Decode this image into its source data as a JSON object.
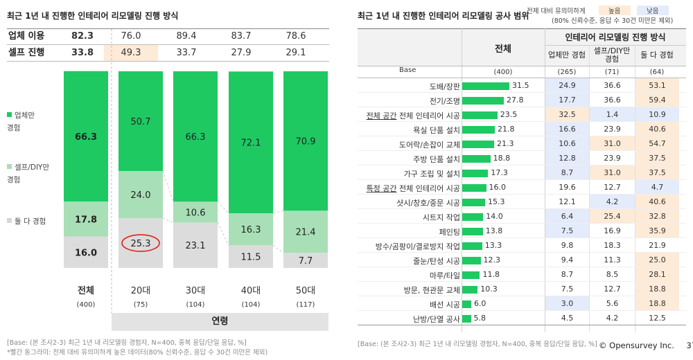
{
  "left": {
    "title": "최근 1년 내 진행한 인테리어 리모델링 진행 방식",
    "summary_rows": [
      {
        "label": "업체 이용",
        "values": [
          "82.3",
          "76.0",
          "89.4",
          "83.7",
          "78.6"
        ]
      },
      {
        "label": "셀프 진행",
        "values": [
          "33.8",
          "49.3",
          "33.7",
          "27.9",
          "29.1"
        ]
      }
    ],
    "legend": {
      "company_1": "업체만",
      "company_2": "경험",
      "self_1": "셀프/DIY만",
      "self_2": "경험",
      "both": "둘 다 경험"
    },
    "axis_group_label": "연령",
    "source_1": "[Base: (본 조사2-3) 최근 1년 내 리모델링 경험자, N=400, 중복 응답/단일 응답, %]",
    "source_2": "*빨간 동그라미: 전체 대비 유의미하게 높은 데이터(80% 신뢰수준, 응답 수 30건 미만은 제외)"
  },
  "chart_data": {
    "type": "bar",
    "stacked": true,
    "title": "최근 1년 내 진행한 인테리어 리모델링 진행 방식",
    "categories": [
      "전체",
      "20대",
      "30대",
      "40대",
      "50대"
    ],
    "bases": [
      "(400)",
      "(75)",
      "(104)",
      "(104)",
      "(117)"
    ],
    "series": [
      {
        "name": "둘 다 경험",
        "color": "#dcdcdc",
        "values": [
          16.0,
          25.3,
          23.1,
          11.5,
          7.7
        ]
      },
      {
        "name": "셀프/DIY만 경험",
        "color": "#a9dfb6",
        "values": [
          17.8,
          24.0,
          10.6,
          16.3,
          21.4
        ]
      },
      {
        "name": "업체만 경험",
        "color": "#1ec962",
        "values": [
          66.3,
          50.7,
          66.3,
          72.1,
          70.9
        ]
      }
    ],
    "ylim": [
      0,
      100
    ],
    "highlight": {
      "category": "20대",
      "series": "둘 다 경험"
    }
  },
  "right": {
    "title": "최근 1년 내 진행한 인테리어 리모델링 공사 범위",
    "legend_note_1": "전체 대비 유의미하게",
    "legend_high": "높음",
    "legend_low": "낮음",
    "legend_note_2": "(80% 신뢰수준, 응답 수 30건 미만은 제외)",
    "header_total": "전체",
    "header_group": "인테리어 리모델링 진행 방식",
    "header_cols": [
      [
        "업체만 경험"
      ],
      [
        "셀프/DIY만",
        "경험"
      ],
      [
        "둘 다 경험"
      ]
    ],
    "base_label": "Base",
    "bases": [
      "(400)",
      "(265)",
      "(71)",
      "(64)"
    ],
    "rows": [
      {
        "prefix": "",
        "label": "도배/장판",
        "total": "31.5",
        "cols": [
          "24.9",
          "36.6",
          "53.1"
        ],
        "marks": [
          "low",
          "",
          "high"
        ]
      },
      {
        "prefix": "",
        "label": "전기/조명",
        "total": "27.8",
        "cols": [
          "17.7",
          "36.6",
          "59.4"
        ],
        "marks": [
          "low",
          "",
          "high"
        ]
      },
      {
        "prefix": "전체 공간",
        "label": " 전체 인테리어 시공",
        "total": "23.5",
        "cols": [
          "32.5",
          "1.4",
          "10.9"
        ],
        "marks": [
          "high",
          "low",
          "low"
        ]
      },
      {
        "prefix": "",
        "label": "욕실 단품 설치",
        "total": "21.8",
        "cols": [
          "16.6",
          "23.9",
          "40.6"
        ],
        "marks": [
          "low",
          "",
          "high"
        ]
      },
      {
        "prefix": "",
        "label": "도어락/손잡이 교체",
        "total": "21.3",
        "cols": [
          "10.6",
          "31.0",
          "54.7"
        ],
        "marks": [
          "low",
          "high",
          "high"
        ]
      },
      {
        "prefix": "",
        "label": "주방 단품 설치",
        "total": "18.8",
        "cols": [
          "12.8",
          "23.9",
          "37.5"
        ],
        "marks": [
          "low",
          "",
          "high"
        ]
      },
      {
        "prefix": "",
        "label": "가구 조립 및 설치",
        "total": "17.3",
        "cols": [
          "8.7",
          "31.0",
          "37.5"
        ],
        "marks": [
          "low",
          "high",
          "high"
        ]
      },
      {
        "prefix": "특정 공간",
        "label": " 전체 인테리어 시공",
        "total": "16.0",
        "cols": [
          "19.6",
          "12.7",
          "4.7"
        ],
        "marks": [
          "",
          "",
          "low"
        ]
      },
      {
        "prefix": "",
        "label": "샷시/창호/중문 시공",
        "total": "15.3",
        "cols": [
          "12.1",
          "4.2",
          "40.6"
        ],
        "marks": [
          "",
          "low",
          "high"
        ]
      },
      {
        "prefix": "",
        "label": "시트지 작업",
        "total": "14.0",
        "cols": [
          "6.4",
          "25.4",
          "32.8"
        ],
        "marks": [
          "low",
          "high",
          "high"
        ]
      },
      {
        "prefix": "",
        "label": "페인팅",
        "total": "13.8",
        "cols": [
          "7.5",
          "16.9",
          "35.9"
        ],
        "marks": [
          "low",
          "",
          "high"
        ]
      },
      {
        "prefix": "",
        "label": "방수/곰팡이/결로방지 작업",
        "total": "13.3",
        "cols": [
          "9.8",
          "18.3",
          "21.9"
        ],
        "marks": [
          "",
          "",
          ""
        ]
      },
      {
        "prefix": "",
        "label": "줄눈/탄성 시공",
        "total": "12.3",
        "cols": [
          "9.4",
          "11.3",
          "25.0"
        ],
        "marks": [
          "",
          "",
          "high"
        ]
      },
      {
        "prefix": "",
        "label": "마루/타일",
        "total": "11.8",
        "cols": [
          "8.7",
          "8.5",
          "28.1"
        ],
        "marks": [
          "",
          "",
          "high"
        ]
      },
      {
        "prefix": "",
        "label": "방문, 현관문 교체",
        "total": "10.3",
        "cols": [
          "7.5",
          "12.7",
          "18.8"
        ],
        "marks": [
          "",
          "",
          "high"
        ]
      },
      {
        "prefix": "",
        "label": "배선 시공",
        "total": "6.0",
        "cols": [
          "3.0",
          "5.6",
          "18.8"
        ],
        "marks": [
          "low",
          "",
          "high"
        ]
      },
      {
        "prefix": "",
        "label": "난방/단열 공사",
        "total": "5.8",
        "cols": [
          "4.5",
          "4.2",
          "12.5"
        ],
        "marks": [
          "",
          "",
          ""
        ]
      }
    ],
    "source": "[Base: (본 조사2-3) 최근 1년 내 리모델링 경험자, N=400, 중복 응답/단일 응답, %]"
  },
  "footer": {
    "brand": "© Opensurvey Inc.",
    "page": "37"
  },
  "colors": {
    "green": "#1ec962",
    "light_green": "#a9dfb6",
    "grey": "#dcdcdc",
    "high": "#fdebd8",
    "low": "#e4ebfb",
    "circle": "#e0201b"
  }
}
